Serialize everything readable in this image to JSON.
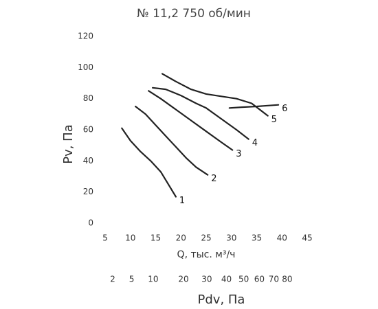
{
  "chart_data": {
    "type": "line",
    "title": "№ 11,2 750 об/мин",
    "xlabel": "Q, тыс. м³/ч",
    "ylabel": "Pv, Па",
    "x2label": "Pdv, Па",
    "xlim": [
      5,
      45
    ],
    "xticks": [
      5,
      10,
      15,
      20,
      25,
      30,
      35,
      40,
      45
    ],
    "ylim": [
      0,
      120
    ],
    "yticks": [
      0,
      20,
      40,
      60,
      80,
      100,
      120
    ],
    "x2lim": [
      1.19,
      96.2
    ],
    "x2scale": "sqrt",
    "x2ticks": [
      2,
      5,
      10,
      20,
      30,
      40,
      50,
      60,
      70,
      80
    ],
    "grid": false,
    "series": [
      {
        "name": "1",
        "color": "#222222",
        "x": [
          8.3,
          10,
          12,
          14,
          16,
          17.5,
          19
        ],
        "values": [
          61,
          53,
          46,
          40,
          33,
          25,
          17
        ]
      },
      {
        "name": "2",
        "color": "#222222",
        "x": [
          11,
          13,
          15,
          17,
          19,
          21,
          23,
          25.3
        ],
        "values": [
          75,
          70,
          63,
          56,
          49,
          42,
          36,
          31
        ]
      },
      {
        "name": "3",
        "color": "#222222",
        "x": [
          13.6,
          16,
          19,
          22,
          25,
          28,
          30.2
        ],
        "values": [
          85,
          80,
          73,
          66,
          59,
          52,
          47
        ]
      },
      {
        "name": "4",
        "color": "#222222",
        "x": [
          14.4,
          17,
          20,
          23,
          25,
          28,
          31,
          33.4
        ],
        "values": [
          87,
          86,
          82,
          77,
          74,
          67,
          60,
          54
        ]
      },
      {
        "name": "5",
        "color": "#222222",
        "x": [
          16.3,
          19,
          22,
          25,
          28,
          31,
          34,
          37.2
        ],
        "values": [
          96,
          91,
          86,
          83,
          81.5,
          80,
          77,
          69
        ]
      },
      {
        "name": "6",
        "color": "#222222",
        "x": [
          29.6,
          32,
          35,
          39.3
        ],
        "values": [
          74,
          74.5,
          75,
          76
        ]
      }
    ]
  }
}
